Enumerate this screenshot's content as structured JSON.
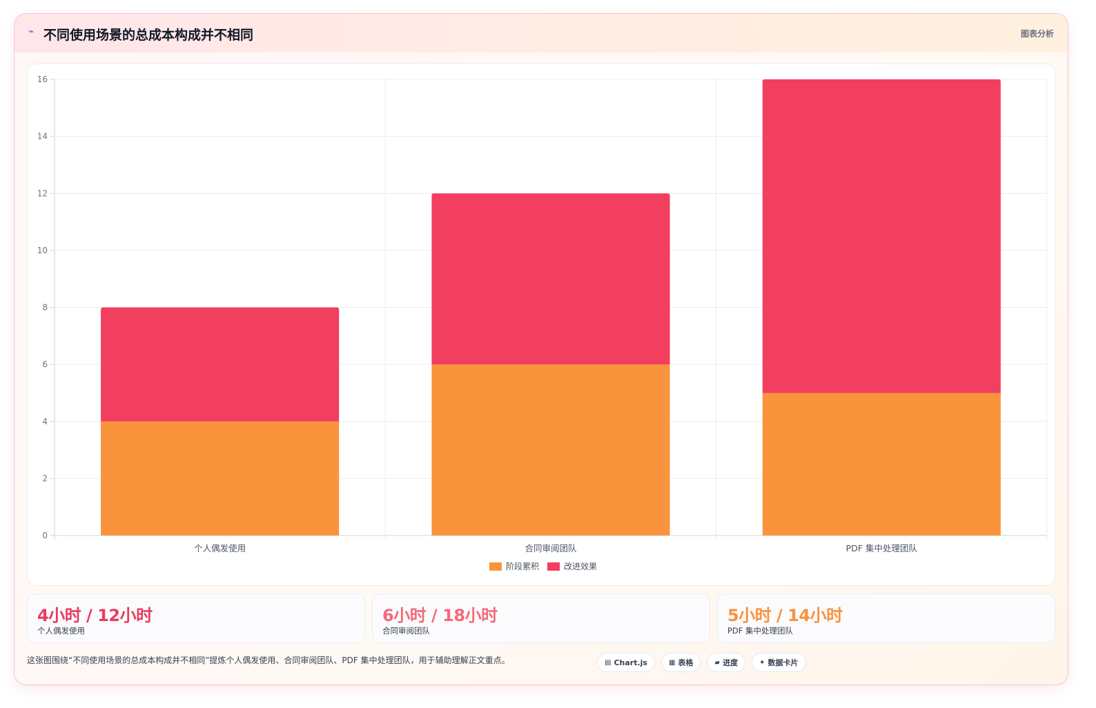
{
  "header": {
    "icon": "pulse-line-icon",
    "title": "不同使用场景的总成本构成并不相同",
    "tag": "图表分析"
  },
  "chart_data": {
    "type": "bar",
    "stacked": true,
    "categories": [
      "个人偶发使用",
      "合同审阅团队",
      "PDF 集中处理团队"
    ],
    "series": [
      {
        "name": "阶段累积",
        "values": [
          4,
          6,
          5
        ],
        "color": "#fa943c"
      },
      {
        "name": "改进效果",
        "values": [
          4,
          6,
          11
        ],
        "color": "#f23f5f"
      }
    ],
    "ylim": [
      0,
      16
    ],
    "yticks": [
      0,
      2,
      4,
      6,
      8,
      10,
      12,
      14,
      16
    ],
    "grid": true,
    "legend": "bottom"
  },
  "stats": [
    {
      "value": "4小时 / 12小时",
      "label": "个人偶发使用",
      "color": "#e93c5f"
    },
    {
      "value": "6小时 / 18小时",
      "label": "合同审阅团队",
      "color": "#f36a7a"
    },
    {
      "value": "5小时 / 14小时",
      "label": "PDF 集中处理团队",
      "color": "#f7923e"
    }
  ],
  "footnote": "这张图围绕“不同使用场景的总成本构成并不相同”提炼个人偶发使用、合同审阅团队、PDF 集中处理团队，用于辅助理解正文重点。",
  "tags": [
    {
      "icon": "▤",
      "icon_name": "chart-icon",
      "label": "Chart.js"
    },
    {
      "icon": "▦",
      "icon_name": "table-icon",
      "label": "表格"
    },
    {
      "icon": "▰",
      "icon_name": "progress-icon",
      "label": "进度"
    },
    {
      "icon": "✦",
      "icon_name": "sparkle-icon",
      "label": "数据卡片"
    }
  ]
}
